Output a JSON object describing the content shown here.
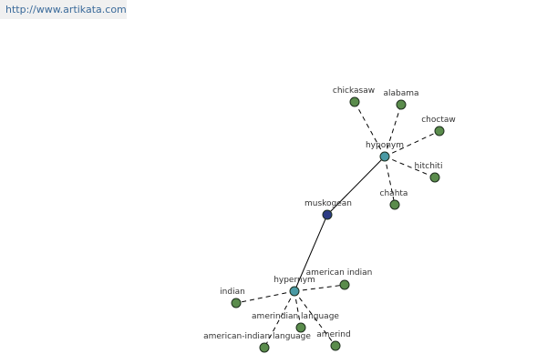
{
  "header": {
    "url": "http://www.artikata.com"
  },
  "nodes": [
    {
      "label": "muskogean"
    },
    {
      "label": "hyponym"
    },
    {
      "label": "hypernym"
    },
    {
      "label": "chickasaw"
    },
    {
      "label": "alabama"
    },
    {
      "label": "choctaw"
    },
    {
      "label": "hitchiti"
    },
    {
      "label": "chahta"
    },
    {
      "label": "indian"
    },
    {
      "label": "american indian"
    },
    {
      "label": "amerindian language"
    },
    {
      "label": "american-indian language"
    },
    {
      "label": "amerind"
    }
  ]
}
